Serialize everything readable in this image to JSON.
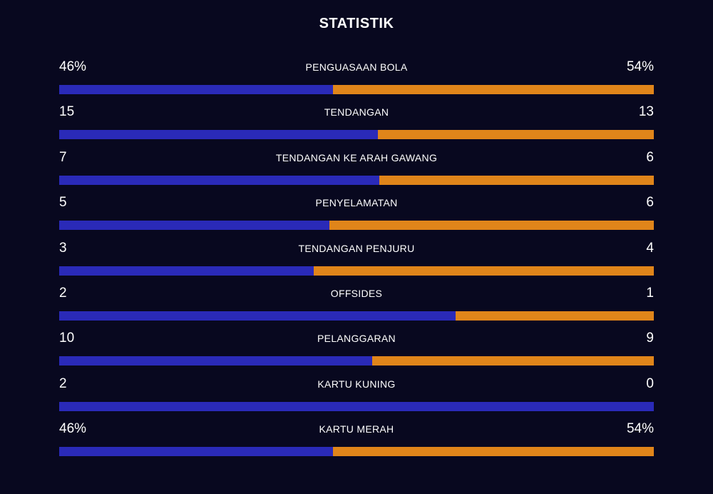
{
  "title": "STATISTIK",
  "colors": {
    "home": "#2a2ab8",
    "away": "#e0851a",
    "background": "#08081f"
  },
  "stats": [
    {
      "label": "PENGUASAAN BOLA",
      "home": "46%",
      "away": "54%",
      "home_value": 46,
      "away_value": 54
    },
    {
      "label": "TENDANGAN",
      "home": "15",
      "away": "13",
      "home_value": 15,
      "away_value": 13
    },
    {
      "label": "TENDANGAN KE ARAH GAWANG",
      "home": "7",
      "away": "6",
      "home_value": 7,
      "away_value": 6
    },
    {
      "label": "PENYELAMATAN",
      "home": "5",
      "away": "6",
      "home_value": 5,
      "away_value": 6
    },
    {
      "label": "TENDANGAN PENJURU",
      "home": "3",
      "away": "4",
      "home_value": 3,
      "away_value": 4
    },
    {
      "label": "OFFSIDES",
      "home": "2",
      "away": "1",
      "home_value": 2,
      "away_value": 1
    },
    {
      "label": "PELANGGARAN",
      "home": "10",
      "away": "9",
      "home_value": 10,
      "away_value": 9
    },
    {
      "label": "KARTU KUNING",
      "home": "2",
      "away": "0",
      "home_value": 2,
      "away_value": 0
    },
    {
      "label": "KARTU MERAH",
      "home": "46%",
      "away": "54%",
      "home_value": 46,
      "away_value": 54
    }
  ]
}
